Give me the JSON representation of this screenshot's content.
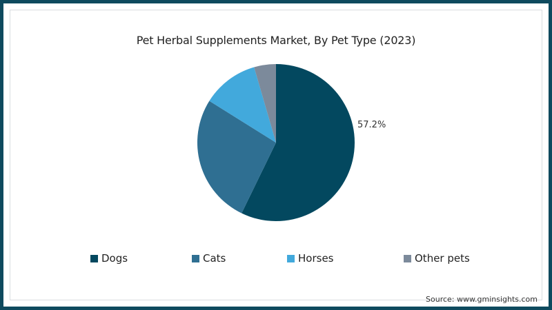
{
  "chart_data": {
    "type": "pie",
    "title": "Pet Herbal Supplements Market, By Pet Type (2023)",
    "categories": [
      "Dogs",
      "Cats",
      "Horses",
      "Other pets"
    ],
    "values": [
      57.2,
      26.7,
      11.6,
      4.5
    ],
    "colors": [
      "#03485f",
      "#2f6f92",
      "#42a9dc",
      "#7c8a9b"
    ],
    "data_labels": [
      {
        "category": "Dogs",
        "label": "57.2%"
      }
    ],
    "start_angle": "12 o'clock, clockwise",
    "legend_position": "bottom",
    "source": "Source: www.gminsights.com"
  },
  "title": "Pet Herbal Supplements Market, By Pet Type (2023)",
  "label_dogs": "57.2%",
  "legend": [
    {
      "label": "Dogs",
      "color": "#03485f"
    },
    {
      "label": "Cats",
      "color": "#2f6f92"
    },
    {
      "label": "Horses",
      "color": "#42a9dc"
    },
    {
      "label": "Other pets",
      "color": "#7c8a9b"
    }
  ],
  "source": "Source: www.gminsights.com"
}
